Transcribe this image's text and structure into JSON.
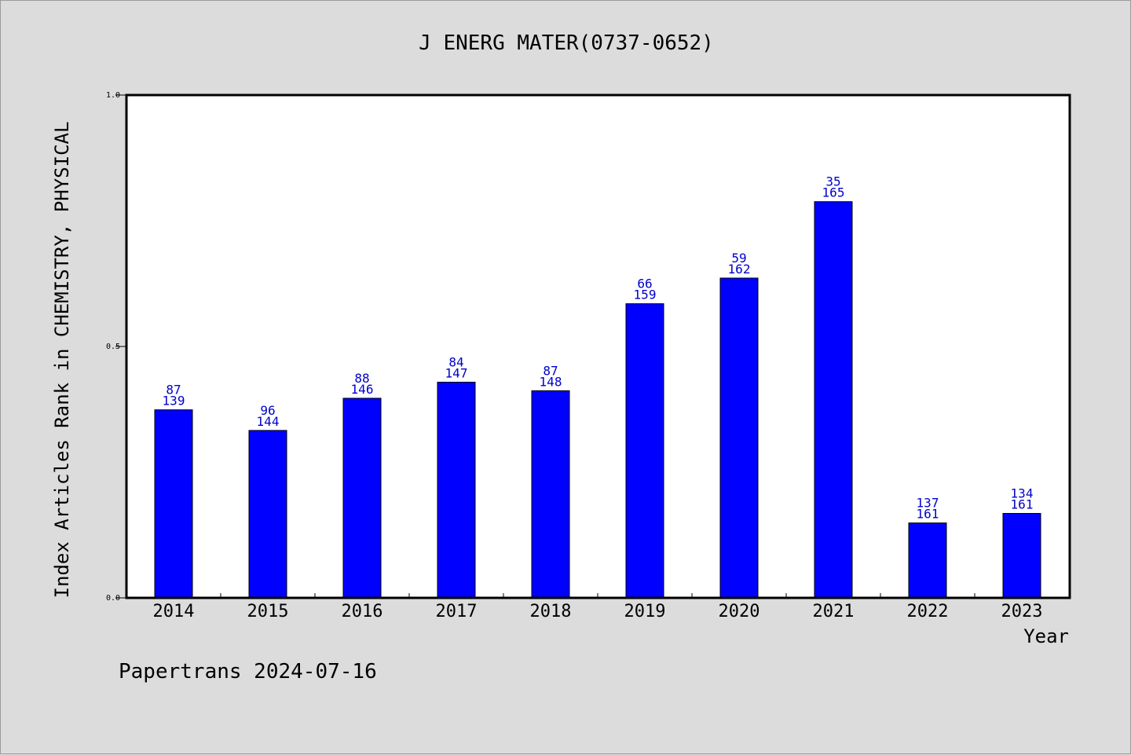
{
  "chart_data": {
    "type": "bar",
    "title": "J ENERG MATER(0737-0652)",
    "xlabel": "Year",
    "ylabel": "Index Articles Rank in CHEMISTRY, PHYSICAL",
    "ylim": [
      0,
      1.0
    ],
    "yticks": [
      "0.0",
      "0.5",
      "1.0"
    ],
    "categories": [
      "2014",
      "2015",
      "2016",
      "2017",
      "2018",
      "2019",
      "2020",
      "2021",
      "2022",
      "2023"
    ],
    "values": [
      0.374,
      0.333,
      0.397,
      0.429,
      0.412,
      0.585,
      0.636,
      0.788,
      0.149,
      0.168
    ],
    "rank": [
      "87",
      "96",
      "88",
      "84",
      "87",
      "66",
      "59",
      "35",
      "137",
      "134"
    ],
    "total": [
      "139",
      "144",
      "146",
      "147",
      "148",
      "159",
      "162",
      "165",
      "161",
      "161"
    ],
    "bar_color": "#0000ff",
    "label_color": "#0000cc",
    "grid": false,
    "legend": "none"
  },
  "footer": "Papertrans 2024-07-16"
}
